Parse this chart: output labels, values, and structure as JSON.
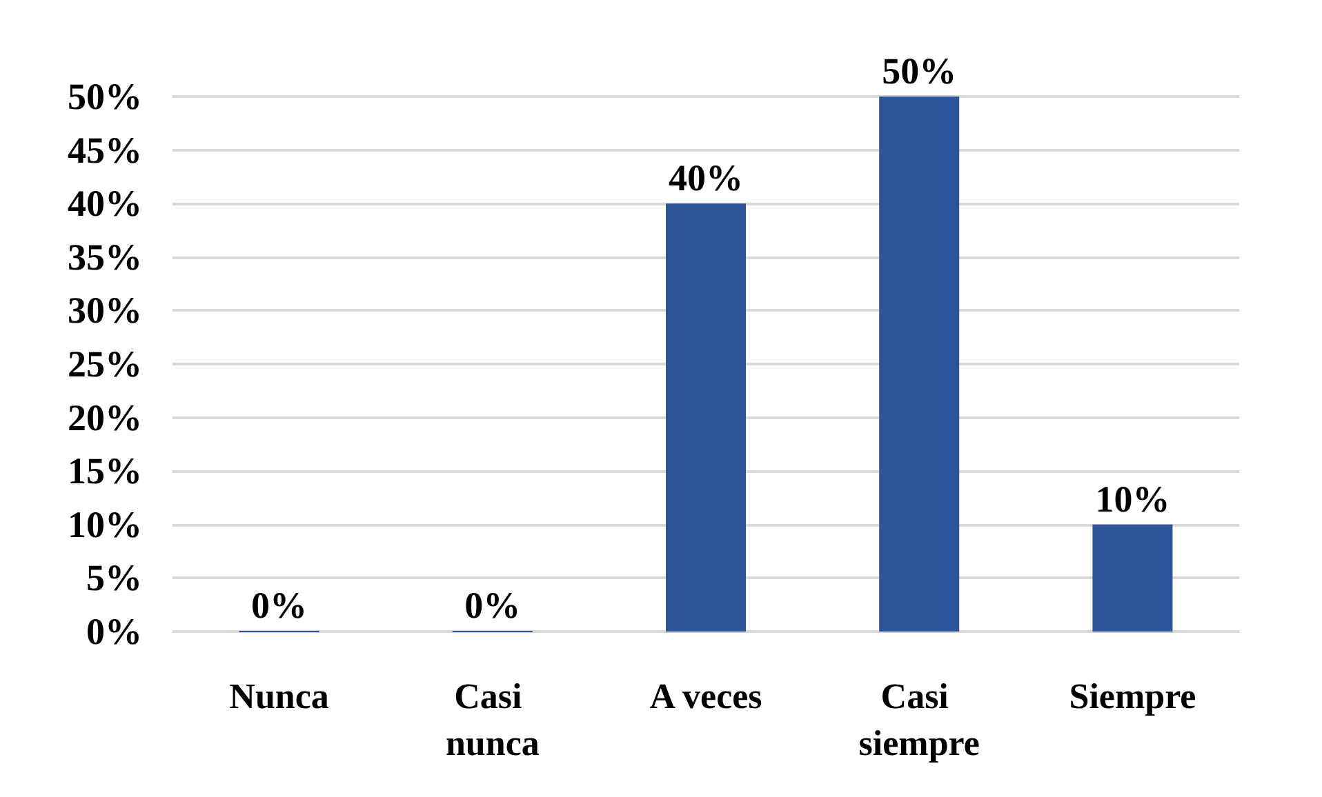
{
  "chart_data": {
    "type": "bar",
    "categories": [
      "Nunca",
      "Casi nunca",
      "A veces",
      "Casi siempre",
      "Siempre"
    ],
    "values": [
      0,
      0,
      40,
      50,
      10
    ],
    "value_labels": [
      "0%",
      "0%",
      "40%",
      "50%",
      "10%"
    ],
    "color": "#2e5597",
    "ylim": [
      0,
      50
    ],
    "yticks": [
      {
        "value": 0,
        "label": "0%"
      },
      {
        "value": 5,
        "label": "5%"
      },
      {
        "value": 10,
        "label": "10%"
      },
      {
        "value": 15,
        "label": "15%"
      },
      {
        "value": 20,
        "label": "20%"
      },
      {
        "value": 25,
        "label": "25%"
      },
      {
        "value": 30,
        "label": "30%"
      },
      {
        "value": 35,
        "label": "35%"
      },
      {
        "value": 40,
        "label": "40%"
      },
      {
        "value": 45,
        "label": "45%"
      },
      {
        "value": 50,
        "label": "50%"
      }
    ],
    "grid": "y"
  }
}
